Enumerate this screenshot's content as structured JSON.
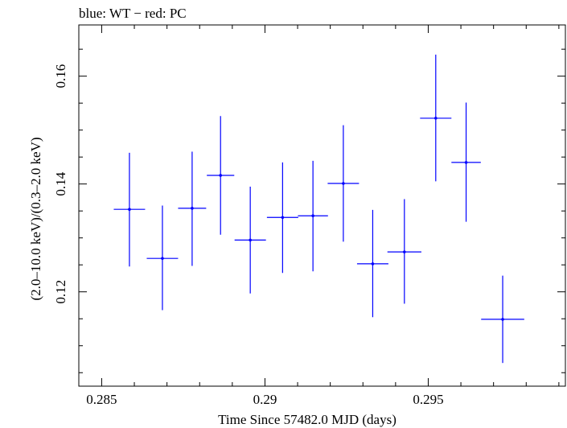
{
  "title": "blue: WT − red: PC",
  "chart_data": {
    "type": "scatter",
    "title": "blue: WT − red: PC",
    "xlabel": "Time Since 57482.0 MJD (days)",
    "ylabel": "(2.0–10.0 keV)/(0.3–2.0 keV)",
    "xlim": [
      0.2843,
      0.2992
    ],
    "ylim": [
      0.1025,
      0.1695
    ],
    "xticks": [
      0.285,
      0.29,
      0.295
    ],
    "xtick_labels": [
      "0.285",
      "0.29",
      "0.295"
    ],
    "yticks": [
      0.12,
      0.14,
      0.16
    ],
    "ytick_labels": [
      "0.12",
      "0.14",
      "0.16"
    ],
    "grid": false,
    "series": [
      {
        "color": "#0000ff",
        "points": [
          {
            "x": 0.28585,
            "xerr": 0.00048,
            "y": 0.1353,
            "ylo": 0.1247,
            "yhi": 0.1458
          },
          {
            "x": 0.28686,
            "xerr": 0.00048,
            "y": 0.1262,
            "ylo": 0.1166,
            "yhi": 0.136
          },
          {
            "x": 0.28777,
            "xerr": 0.00043,
            "y": 0.1355,
            "ylo": 0.1248,
            "yhi": 0.146
          },
          {
            "x": 0.28864,
            "xerr": 0.00042,
            "y": 0.1416,
            "ylo": 0.1306,
            "yhi": 0.1526
          },
          {
            "x": 0.28955,
            "xerr": 0.00048,
            "y": 0.1296,
            "ylo": 0.1197,
            "yhi": 0.1395
          },
          {
            "x": 0.29054,
            "xerr": 0.00048,
            "y": 0.1338,
            "ylo": 0.1235,
            "yhi": 0.144
          },
          {
            "x": 0.29147,
            "xerr": 0.00046,
            "y": 0.1341,
            "ylo": 0.1238,
            "yhi": 0.1443
          },
          {
            "x": 0.2924,
            "xerr": 0.00048,
            "y": 0.1401,
            "ylo": 0.1293,
            "yhi": 0.1509
          },
          {
            "x": 0.2933,
            "xerr": 0.00048,
            "y": 0.1252,
            "ylo": 0.1153,
            "yhi": 0.1352
          },
          {
            "x": 0.29427,
            "xerr": 0.00052,
            "y": 0.1274,
            "ylo": 0.1178,
            "yhi": 0.1372
          },
          {
            "x": 0.29523,
            "xerr": 0.00048,
            "y": 0.1522,
            "ylo": 0.1405,
            "yhi": 0.164
          },
          {
            "x": 0.29616,
            "xerr": 0.00045,
            "y": 0.144,
            "ylo": 0.133,
            "yhi": 0.1551
          },
          {
            "x": 0.29728,
            "xerr": 0.00066,
            "y": 0.1149,
            "ylo": 0.1068,
            "yhi": 0.123
          }
        ]
      }
    ]
  }
}
